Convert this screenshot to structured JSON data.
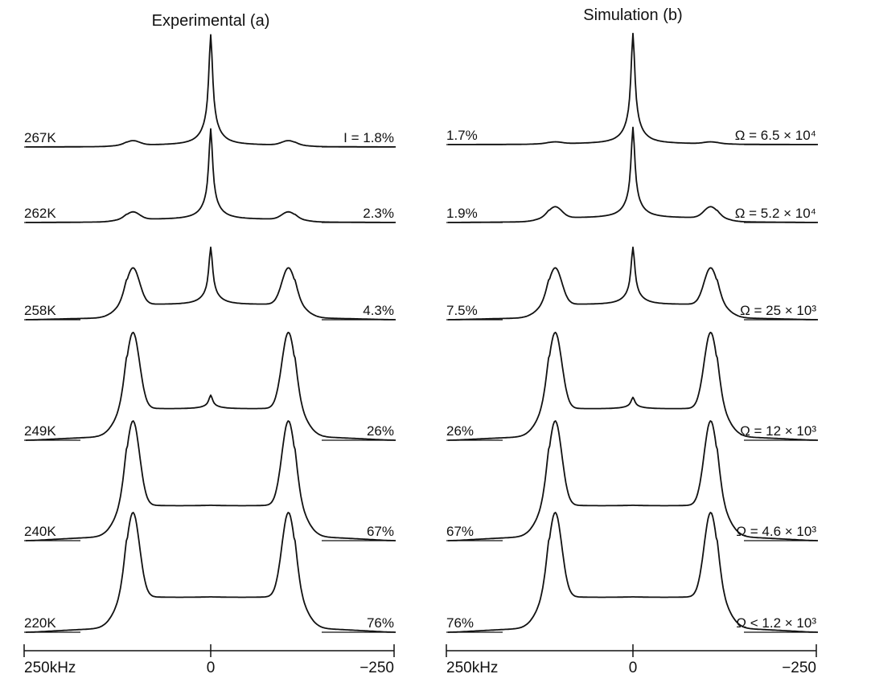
{
  "chart_data": [
    {
      "type": "line",
      "title": "Experimental (a)",
      "x_ticks": [
        "250kHz",
        "0",
        "−250"
      ],
      "xlim": [
        250,
        -250
      ],
      "spectra": [
        {
          "left_label": "267K",
          "right_label": "I = 1.8%",
          "narrow_intensity": 1.0,
          "shoulder_intensity": 0.05
        },
        {
          "left_label": "262K",
          "right_label": "2.3%",
          "narrow_intensity": 0.95,
          "shoulder_intensity": 0.1
        },
        {
          "left_label": "258K",
          "right_label": "4.3%",
          "narrow_intensity": 0.6,
          "shoulder_intensity": 0.5
        },
        {
          "left_label": "249K",
          "right_label": "26%",
          "narrow_intensity": 0.12,
          "shoulder_intensity": 0.9
        },
        {
          "left_label": "240K",
          "right_label": "67%",
          "narrow_intensity": 0.0,
          "shoulder_intensity": 1.0
        },
        {
          "left_label": "220K",
          "right_label": "76%",
          "narrow_intensity": 0.0,
          "shoulder_intensity": 1.0
        }
      ]
    },
    {
      "type": "line",
      "title": "Simulation (b)",
      "x_ticks": [
        "250kHz",
        "0",
        "−250"
      ],
      "xlim": [
        250,
        -250
      ],
      "spectra": [
        {
          "left_label": "1.7%",
          "right_label": "Ω = 6.5 × 10⁴",
          "narrow_intensity": 1.0,
          "shoulder_intensity": 0.02
        },
        {
          "left_label": "1.9%",
          "right_label": "Ω = 5.2 × 10⁴",
          "narrow_intensity": 0.95,
          "shoulder_intensity": 0.15
        },
        {
          "left_label": "7.5%",
          "right_label": "Ω = 25 × 10³",
          "narrow_intensity": 0.6,
          "shoulder_intensity": 0.5
        },
        {
          "left_label": "26%",
          "right_label": "Ω = 12 × 10³",
          "narrow_intensity": 0.1,
          "shoulder_intensity": 0.9
        },
        {
          "left_label": "67%",
          "right_label": "Ω = 4.6 × 10³",
          "narrow_intensity": 0.0,
          "shoulder_intensity": 1.0
        },
        {
          "left_label": "76%",
          "right_label": "Ω < 1.2 × 10³",
          "narrow_intensity": 0.0,
          "shoulder_intensity": 1.0
        }
      ]
    }
  ]
}
